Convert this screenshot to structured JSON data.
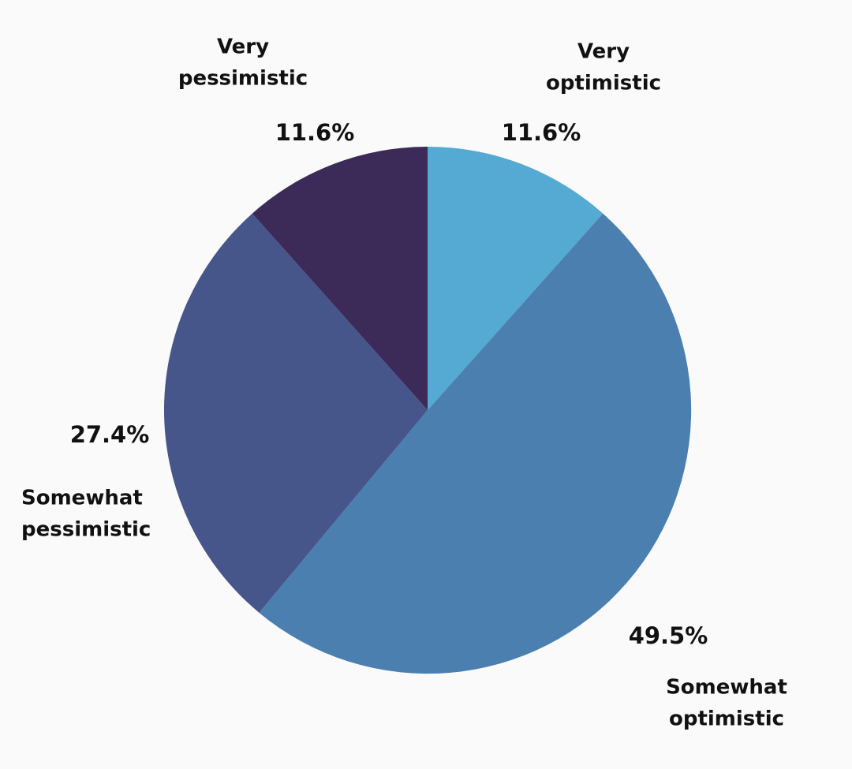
{
  "chart_data": {
    "type": "pie",
    "title": "",
    "start_angle_deg": 0,
    "direction": "clockwise",
    "slices": [
      {
        "label_lines": [
          "Very",
          "optimistic"
        ],
        "value": 11.6,
        "value_label": "11.6%",
        "color": "#54aad2"
      },
      {
        "label_lines": [
          "Somewhat",
          "optimistic"
        ],
        "value": 49.5,
        "value_label": "49.5%",
        "color": "#4a7fb0"
      },
      {
        "label_lines": [
          "Somewhat",
          "pessimistic"
        ],
        "value": 27.4,
        "value_label": "27.4%",
        "color": "#46558a"
      },
      {
        "label_lines": [
          "Very",
          "pessimistic"
        ],
        "value": 11.6,
        "value_label": "11.6%",
        "color": "#3c2a59"
      }
    ]
  }
}
